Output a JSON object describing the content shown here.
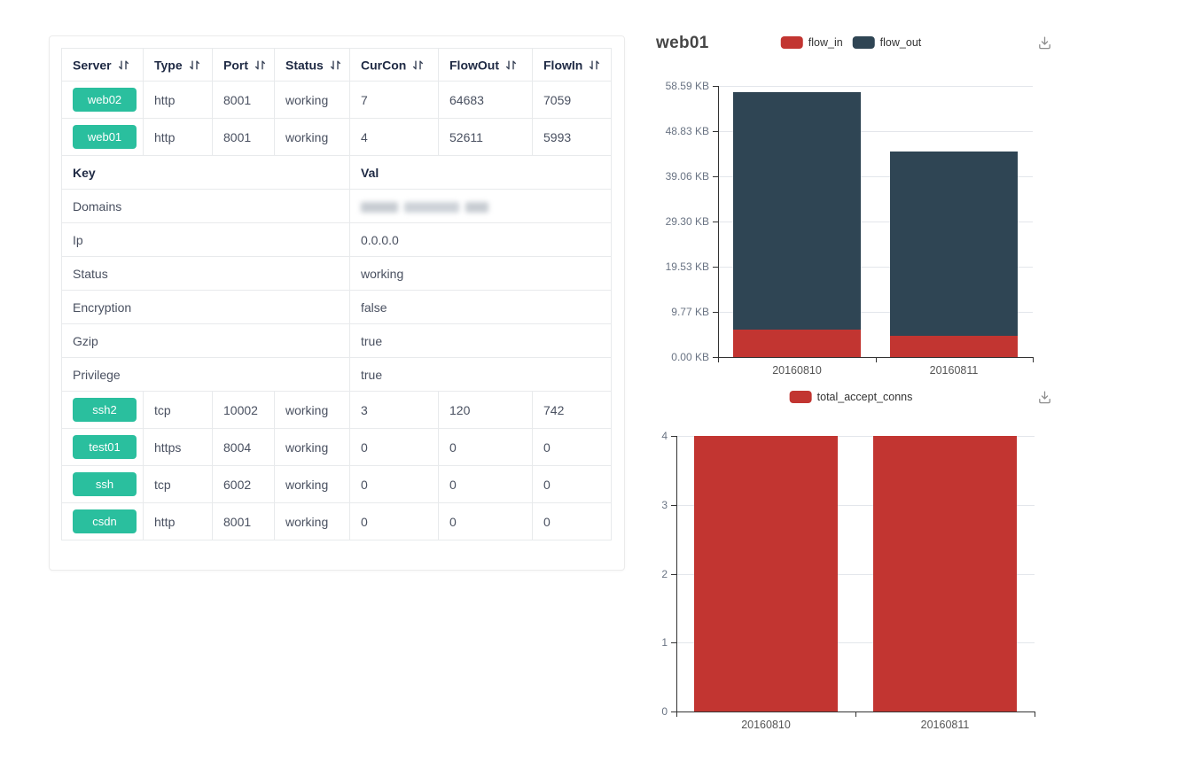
{
  "colors": {
    "accent_green": "#2abf9e",
    "series_red": "#c23531",
    "series_dark": "#2f4554",
    "table_border": "#e8eaec"
  },
  "table": {
    "columns": [
      {
        "label": "Server",
        "sortable": true
      },
      {
        "label": "Type",
        "sortable": true
      },
      {
        "label": "Port",
        "sortable": true
      },
      {
        "label": "Status",
        "sortable": true
      },
      {
        "label": "CurCon",
        "sortable": true
      },
      {
        "label": "FlowOut",
        "sortable": true
      },
      {
        "label": "FlowIn",
        "sortable": true
      }
    ],
    "top_rows": [
      {
        "server": "web02",
        "type": "http",
        "port": "8001",
        "status": "working",
        "curcon": "7",
        "flowout": "64683",
        "flowin": "7059"
      },
      {
        "server": "web01",
        "type": "http",
        "port": "8001",
        "status": "working",
        "curcon": "4",
        "flowout": "52611",
        "flowin": "5993"
      }
    ],
    "detail": {
      "key_header": "Key",
      "val_header": "Val",
      "rows": [
        {
          "key": "Domains",
          "value": "",
          "blurred": true
        },
        {
          "key": "Ip",
          "value": "0.0.0.0"
        },
        {
          "key": "Status",
          "value": "working"
        },
        {
          "key": "Encryption",
          "value": "false"
        },
        {
          "key": "Gzip",
          "value": "true"
        },
        {
          "key": "Privilege",
          "value": "true"
        }
      ]
    },
    "bottom_rows": [
      {
        "server": "ssh2",
        "type": "tcp",
        "port": "10002",
        "status": "working",
        "curcon": "3",
        "flowout": "120",
        "flowin": "742"
      },
      {
        "server": "test01",
        "type": "https",
        "port": "8004",
        "status": "working",
        "curcon": "0",
        "flowout": "0",
        "flowin": "0"
      },
      {
        "server": "ssh",
        "type": "tcp",
        "port": "6002",
        "status": "working",
        "curcon": "0",
        "flowout": "0",
        "flowin": "0"
      },
      {
        "server": "csdn",
        "type": "http",
        "port": "8001",
        "status": "working",
        "curcon": "0",
        "flowout": "0",
        "flowin": "0"
      }
    ]
  },
  "chart_data": [
    {
      "type": "bar",
      "stacked": true,
      "title": "web01",
      "categories": [
        "20160810",
        "20160811"
      ],
      "series": [
        {
          "name": "flow_in",
          "color": "#c23531",
          "values": [
            5.85,
            4.6
          ]
        },
        {
          "name": "flow_out",
          "color": "#2f4554",
          "values": [
            51.38,
            39.82
          ]
        }
      ],
      "unit": "KB",
      "ylim": [
        0,
        58.59
      ],
      "ytick_labels": [
        "0.00 KB",
        "9.77 KB",
        "19.53 KB",
        "29.30 KB",
        "39.06 KB",
        "48.83 KB",
        "58.59 KB"
      ],
      "xlabel": "",
      "ylabel": "",
      "grid": true,
      "legend_position": "top-center",
      "has_download_button": true
    },
    {
      "type": "bar",
      "stacked": false,
      "title": "",
      "categories": [
        "20160810",
        "20160811"
      ],
      "series": [
        {
          "name": "total_accept_conns",
          "color": "#c23531",
          "values": [
            4,
            4
          ]
        }
      ],
      "unit": "",
      "ylim": [
        0,
        4
      ],
      "ytick_labels": [
        "0",
        "1",
        "2",
        "3",
        "4"
      ],
      "xlabel": "",
      "ylabel": "",
      "grid": true,
      "legend_position": "top-center",
      "has_download_button": true
    }
  ]
}
